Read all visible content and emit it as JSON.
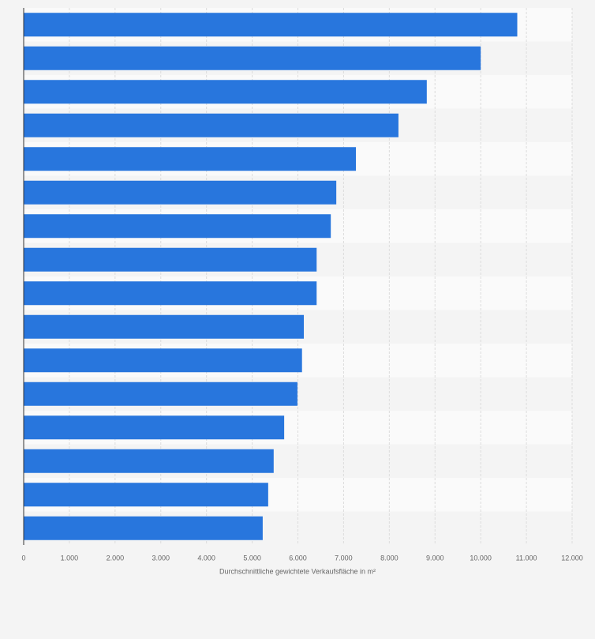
{
  "chart_data": {
    "type": "bar",
    "orientation": "horizontal",
    "x_label": "Durchschnittliche gewichtete Verkaufsfläche in m²",
    "categories": [
      null,
      null,
      null,
      null,
      null,
      null,
      null,
      null,
      null,
      null,
      null,
      null,
      null,
      null,
      null,
      null
    ],
    "values": [
      10800,
      10000,
      8820,
      8200,
      7270,
      6840,
      6720,
      6410,
      6410,
      6130,
      6090,
      5990,
      5700,
      5470,
      5350,
      5230
    ],
    "color": "#2876dd",
    "xlim": [
      0,
      12000
    ],
    "xticks": [
      0,
      {
        "value": 1000,
        "label": "1.000"
      },
      {
        "value": 2000,
        "label": "2.000"
      },
      {
        "value": 3000,
        "label": "3.000"
      },
      {
        "value": 4000,
        "label": "4.000"
      },
      {
        "value": 5000,
        "label": "5.000"
      },
      {
        "value": 6000,
        "label": "6.000"
      },
      {
        "value": 7000,
        "label": "7.000"
      },
      {
        "value": 8000,
        "label": "8.000"
      },
      {
        "value": 9000,
        "label": "9.000"
      },
      {
        "value": 10000,
        "label": "10.000"
      },
      {
        "value": 11000,
        "label": "11.000"
      },
      {
        "value": 12000,
        "label": "12.000"
      }
    ],
    "grid": true
  }
}
